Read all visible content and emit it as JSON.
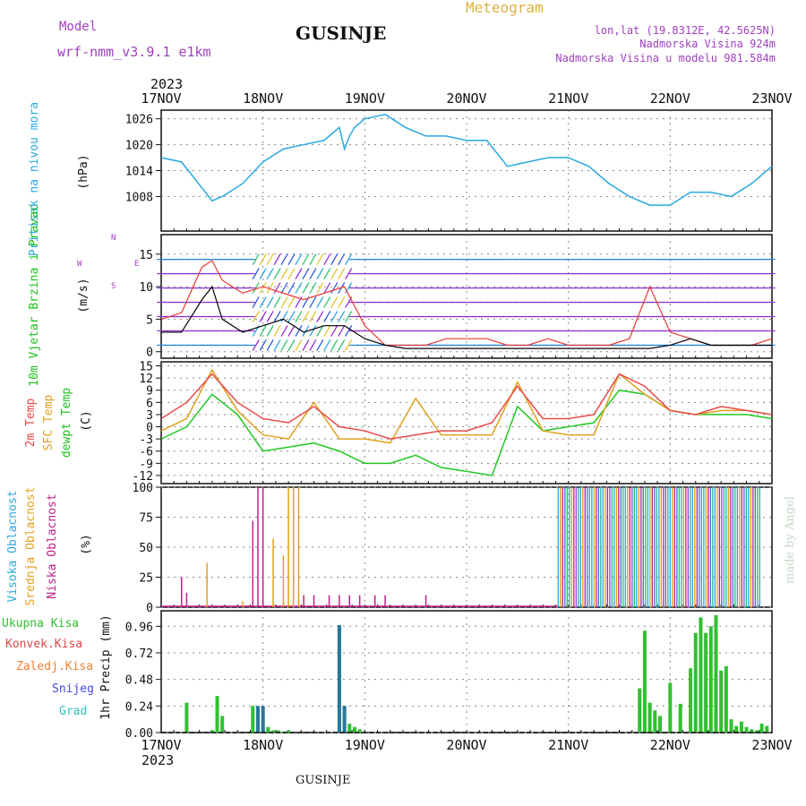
{
  "header": {
    "model_label": "Model",
    "model_name": "wrf-nmm_v3.9.1 e1km",
    "station": "GUSINJE",
    "meteogram_label": "Meteogram",
    "coords": "lon,lat (19.8312E, 42.5625N)",
    "elevation": "Nadmorska Visina 924m",
    "model_elevation": "Nadmorska Visina u modelu 981.584m",
    "year": "2023",
    "footer_station": "GUSINJE",
    "credit": "made by Angel"
  },
  "colors": {
    "pressure": "#29a9e0",
    "wind_speed": "#000000",
    "gust": "#e83838",
    "t2m": "#e84848",
    "sfc": "#e0a020",
    "dew": "#20c820",
    "high_cloud": "#29a9e0",
    "mid_cloud": "#e0a020",
    "low_cloud": "#c0208c",
    "total_precip": "#30c030",
    "conv_precip": "#e04848",
    "frz_precip": "#f08030",
    "snow": "#4848e0",
    "hail": "#30c0c0",
    "purple_text": "#a040c0",
    "orange_text": "#e0b040"
  },
  "chart_data": [
    {
      "type": "line",
      "panel": "pressure",
      "ylabel": "Pritisak na nivou mora",
      "unit": "(hPa)",
      "x_ticks": [
        "17NOV",
        "18NOV",
        "19NOV",
        "20NOV",
        "21NOV",
        "22NOV",
        "23NOV"
      ],
      "y_ticks": [
        1008,
        1014,
        1020,
        1026
      ],
      "ylim": [
        1000,
        1028
      ],
      "series": [
        {
          "x": [
            0,
            0.2,
            0.4,
            0.5,
            0.6,
            0.8,
            1.0,
            1.2,
            1.4,
            1.6,
            1.75,
            1.8,
            1.85,
            1.9,
            2.0,
            2.2,
            2.4,
            2.6,
            2.8,
            3.0,
            3.2,
            3.4,
            3.6,
            3.8,
            4.0,
            4.2,
            4.4,
            4.6,
            4.8,
            5.0,
            5.2,
            5.4,
            5.6,
            5.8,
            6.0
          ],
          "values": [
            1017,
            1016,
            1010,
            1007,
            1008,
            1011,
            1016,
            1019,
            1020,
            1021,
            1024,
            1019,
            1022,
            1024,
            1026,
            1027,
            1024,
            1022,
            1022,
            1021,
            1021,
            1015,
            1016,
            1017,
            1017,
            1015,
            1011,
            1008,
            1006,
            1006,
            1009,
            1009,
            1008,
            1011,
            1015
          ]
        }
      ]
    },
    {
      "type": "line",
      "panel": "wind",
      "ylabel": "10m Vjetar Brzina i Pravac",
      "unit": "(m/s)",
      "compass": [
        "N",
        "S",
        "W",
        "E"
      ],
      "y_ticks": [
        0,
        5,
        10,
        15
      ],
      "ylim": [
        -1,
        18
      ],
      "series": [
        {
          "name": "speed",
          "x": [
            0,
            0.2,
            0.4,
            0.5,
            0.6,
            0.8,
            1.0,
            1.2,
            1.4,
            1.6,
            1.8,
            2.0,
            2.2,
            2.4,
            2.6,
            2.8,
            3.0,
            3.2,
            3.4,
            3.6,
            3.8,
            4.0,
            4.2,
            4.4,
            4.6,
            4.8,
            5.0,
            5.2,
            5.4,
            5.6,
            5.8,
            6.0
          ],
          "values": [
            3,
            3,
            8,
            10,
            5,
            3,
            4,
            5,
            3,
            4,
            4,
            2,
            1,
            0.5,
            0.5,
            0.5,
            0.5,
            0.5,
            0.5,
            0.5,
            0.5,
            0.5,
            0.5,
            0.5,
            0.5,
            0.5,
            1,
            2,
            1,
            1,
            1,
            1
          ]
        },
        {
          "name": "gust",
          "x": [
            0,
            0.2,
            0.4,
            0.5,
            0.6,
            0.8,
            1.0,
            1.2,
            1.4,
            1.6,
            1.8,
            2.0,
            2.2,
            2.4,
            2.6,
            2.8,
            3.0,
            3.2,
            3.4,
            3.6,
            3.8,
            4.0,
            4.2,
            4.4,
            4.6,
            4.8,
            5.0,
            5.2,
            5.4,
            5.6,
            5.8,
            6.0
          ],
          "values": [
            5,
            6,
            13,
            14,
            11,
            9,
            10,
            9,
            8,
            9,
            10,
            4,
            1,
            1,
            1,
            2,
            2,
            2,
            1,
            1,
            2,
            1,
            1,
            1,
            2,
            10,
            3,
            2,
            1,
            1,
            1,
            2
          ]
        }
      ]
    },
    {
      "type": "line",
      "panel": "temperature",
      "ylabel": [
        "2m Temp",
        "SFC Temp",
        "dewpt Temp"
      ],
      "unit": "(C)",
      "y_ticks": [
        -12,
        -9,
        -6,
        -3,
        0,
        3,
        6,
        9,
        12,
        15
      ],
      "ylim": [
        -14,
        16
      ],
      "series": [
        {
          "name": "2m Temp",
          "x": [
            0,
            0.25,
            0.5,
            0.75,
            1.0,
            1.25,
            1.5,
            1.75,
            2.0,
            2.25,
            2.5,
            2.75,
            3.0,
            3.25,
            3.5,
            3.75,
            4.0,
            4.25,
            4.5,
            4.75,
            5.0,
            5.25,
            5.5,
            5.75,
            6.0
          ],
          "values": [
            2,
            6,
            13,
            6,
            2,
            1,
            5,
            0,
            -1,
            -3,
            -2,
            -1,
            -1,
            1,
            10,
            2,
            2,
            3,
            13,
            10,
            4,
            3,
            5,
            4,
            3
          ]
        },
        {
          "name": "SFC Temp",
          "x": [
            0,
            0.25,
            0.5,
            0.75,
            1.0,
            1.25,
            1.5,
            1.75,
            2.0,
            2.25,
            2.5,
            2.75,
            3.0,
            3.25,
            3.5,
            3.75,
            4.0,
            4.25,
            4.5,
            4.75,
            5.0,
            5.25,
            5.5,
            5.75,
            6.0
          ],
          "values": [
            -1,
            2,
            14,
            4,
            -2,
            -3,
            6,
            -3,
            -3,
            -4,
            7,
            -2,
            -2,
            -2,
            11,
            -1,
            -2,
            -2,
            13,
            8,
            4,
            3,
            4,
            4,
            3
          ]
        },
        {
          "name": "dewpt Temp",
          "x": [
            0,
            0.25,
            0.5,
            0.75,
            1.0,
            1.25,
            1.5,
            1.75,
            2.0,
            2.25,
            2.5,
            2.75,
            3.0,
            3.25,
            3.5,
            3.75,
            4.0,
            4.25,
            4.5,
            4.75,
            5.0,
            5.25,
            5.5,
            5.75,
            6.0
          ],
          "values": [
            -3,
            0,
            8,
            3,
            -6,
            -5,
            -4,
            -6,
            -9,
            -9,
            -7,
            -10,
            -11,
            -12,
            5,
            -1,
            0,
            1,
            9,
            8,
            4,
            3,
            3,
            3,
            2
          ]
        }
      ]
    },
    {
      "type": "bar",
      "panel": "cloud",
      "ylabel": [
        "Visoka Oblacnost",
        "Srednja Oblacnost",
        "Niska Oblacnost"
      ],
      "unit": "(%)",
      "y_ticks": [
        0,
        25,
        50,
        75,
        100
      ],
      "ylim": [
        0,
        100
      ],
      "series": [
        {
          "name": "Niska Oblacnost",
          "x": [
            0.2,
            0.25,
            0.9,
            0.95,
            1.0,
            1.4,
            1.5,
            1.65,
            1.75,
            1.85,
            1.95,
            2.1,
            2.2,
            2.6
          ],
          "values": [
            25,
            12,
            72,
            100,
            100,
            10,
            10,
            10,
            10,
            10,
            10,
            10,
            10,
            10
          ]
        },
        {
          "name": "Srednja Oblacnost",
          "x": [
            0.45,
            0.8,
            1.1,
            1.2,
            1.25,
            1.3,
            1.35
          ],
          "values": [
            37,
            5,
            57,
            43,
            100,
            100,
            100
          ]
        },
        {
          "name": "overcast_period",
          "x_start": 3.9,
          "x_end": 5.9,
          "value": 100
        }
      ]
    },
    {
      "type": "bar",
      "panel": "precip",
      "ylabel": [
        "Ukupna Kisa",
        "Konvek.Kisa",
        "Zaledj.Kisa",
        "Snijeg",
        "Grad"
      ],
      "unit": "1hr Precip (mm)",
      "y_ticks": [
        0,
        0.24,
        0.48,
        0.72,
        0.96
      ],
      "ylim": [
        0,
        1.1
      ],
      "series": [
        {
          "name": "Ukupna Kisa",
          "x": [
            0.25,
            0.5,
            0.55,
            0.6,
            0.9,
            0.95,
            1.0,
            1.05,
            1.1,
            1.15,
            1.2,
            1.25,
            1.75,
            1.8,
            1.85,
            1.9,
            1.95,
            4.7,
            4.75,
            4.8,
            4.85,
            4.9,
            5.0,
            5.1,
            5.2,
            5.25,
            5.3,
            5.35,
            5.4,
            5.45,
            5.5,
            5.55,
            5.6,
            5.65,
            5.7,
            5.75,
            5.8,
            5.85,
            5.9,
            5.95
          ],
          "values": [
            0.27,
            0.02,
            0.33,
            0.15,
            0.24,
            0.24,
            0.1,
            0.05,
            0.02,
            0.02,
            0.01,
            0.02,
            0.97,
            0.24,
            0.08,
            0.05,
            0.03,
            0.4,
            0.92,
            0.27,
            0.2,
            0.15,
            0.45,
            0.26,
            0.58,
            0.9,
            1.04,
            0.9,
            0.96,
            1.06,
            0.56,
            0.6,
            0.12,
            0.06,
            0.1,
            0.05,
            0.03,
            0.02,
            0.08,
            0.06
          ]
        },
        {
          "name": "Snijeg",
          "x": [
            0.95,
            1.0,
            1.75,
            1.8
          ],
          "values": [
            0.24,
            0.24,
            0.97,
            0.24
          ]
        }
      ]
    }
  ]
}
